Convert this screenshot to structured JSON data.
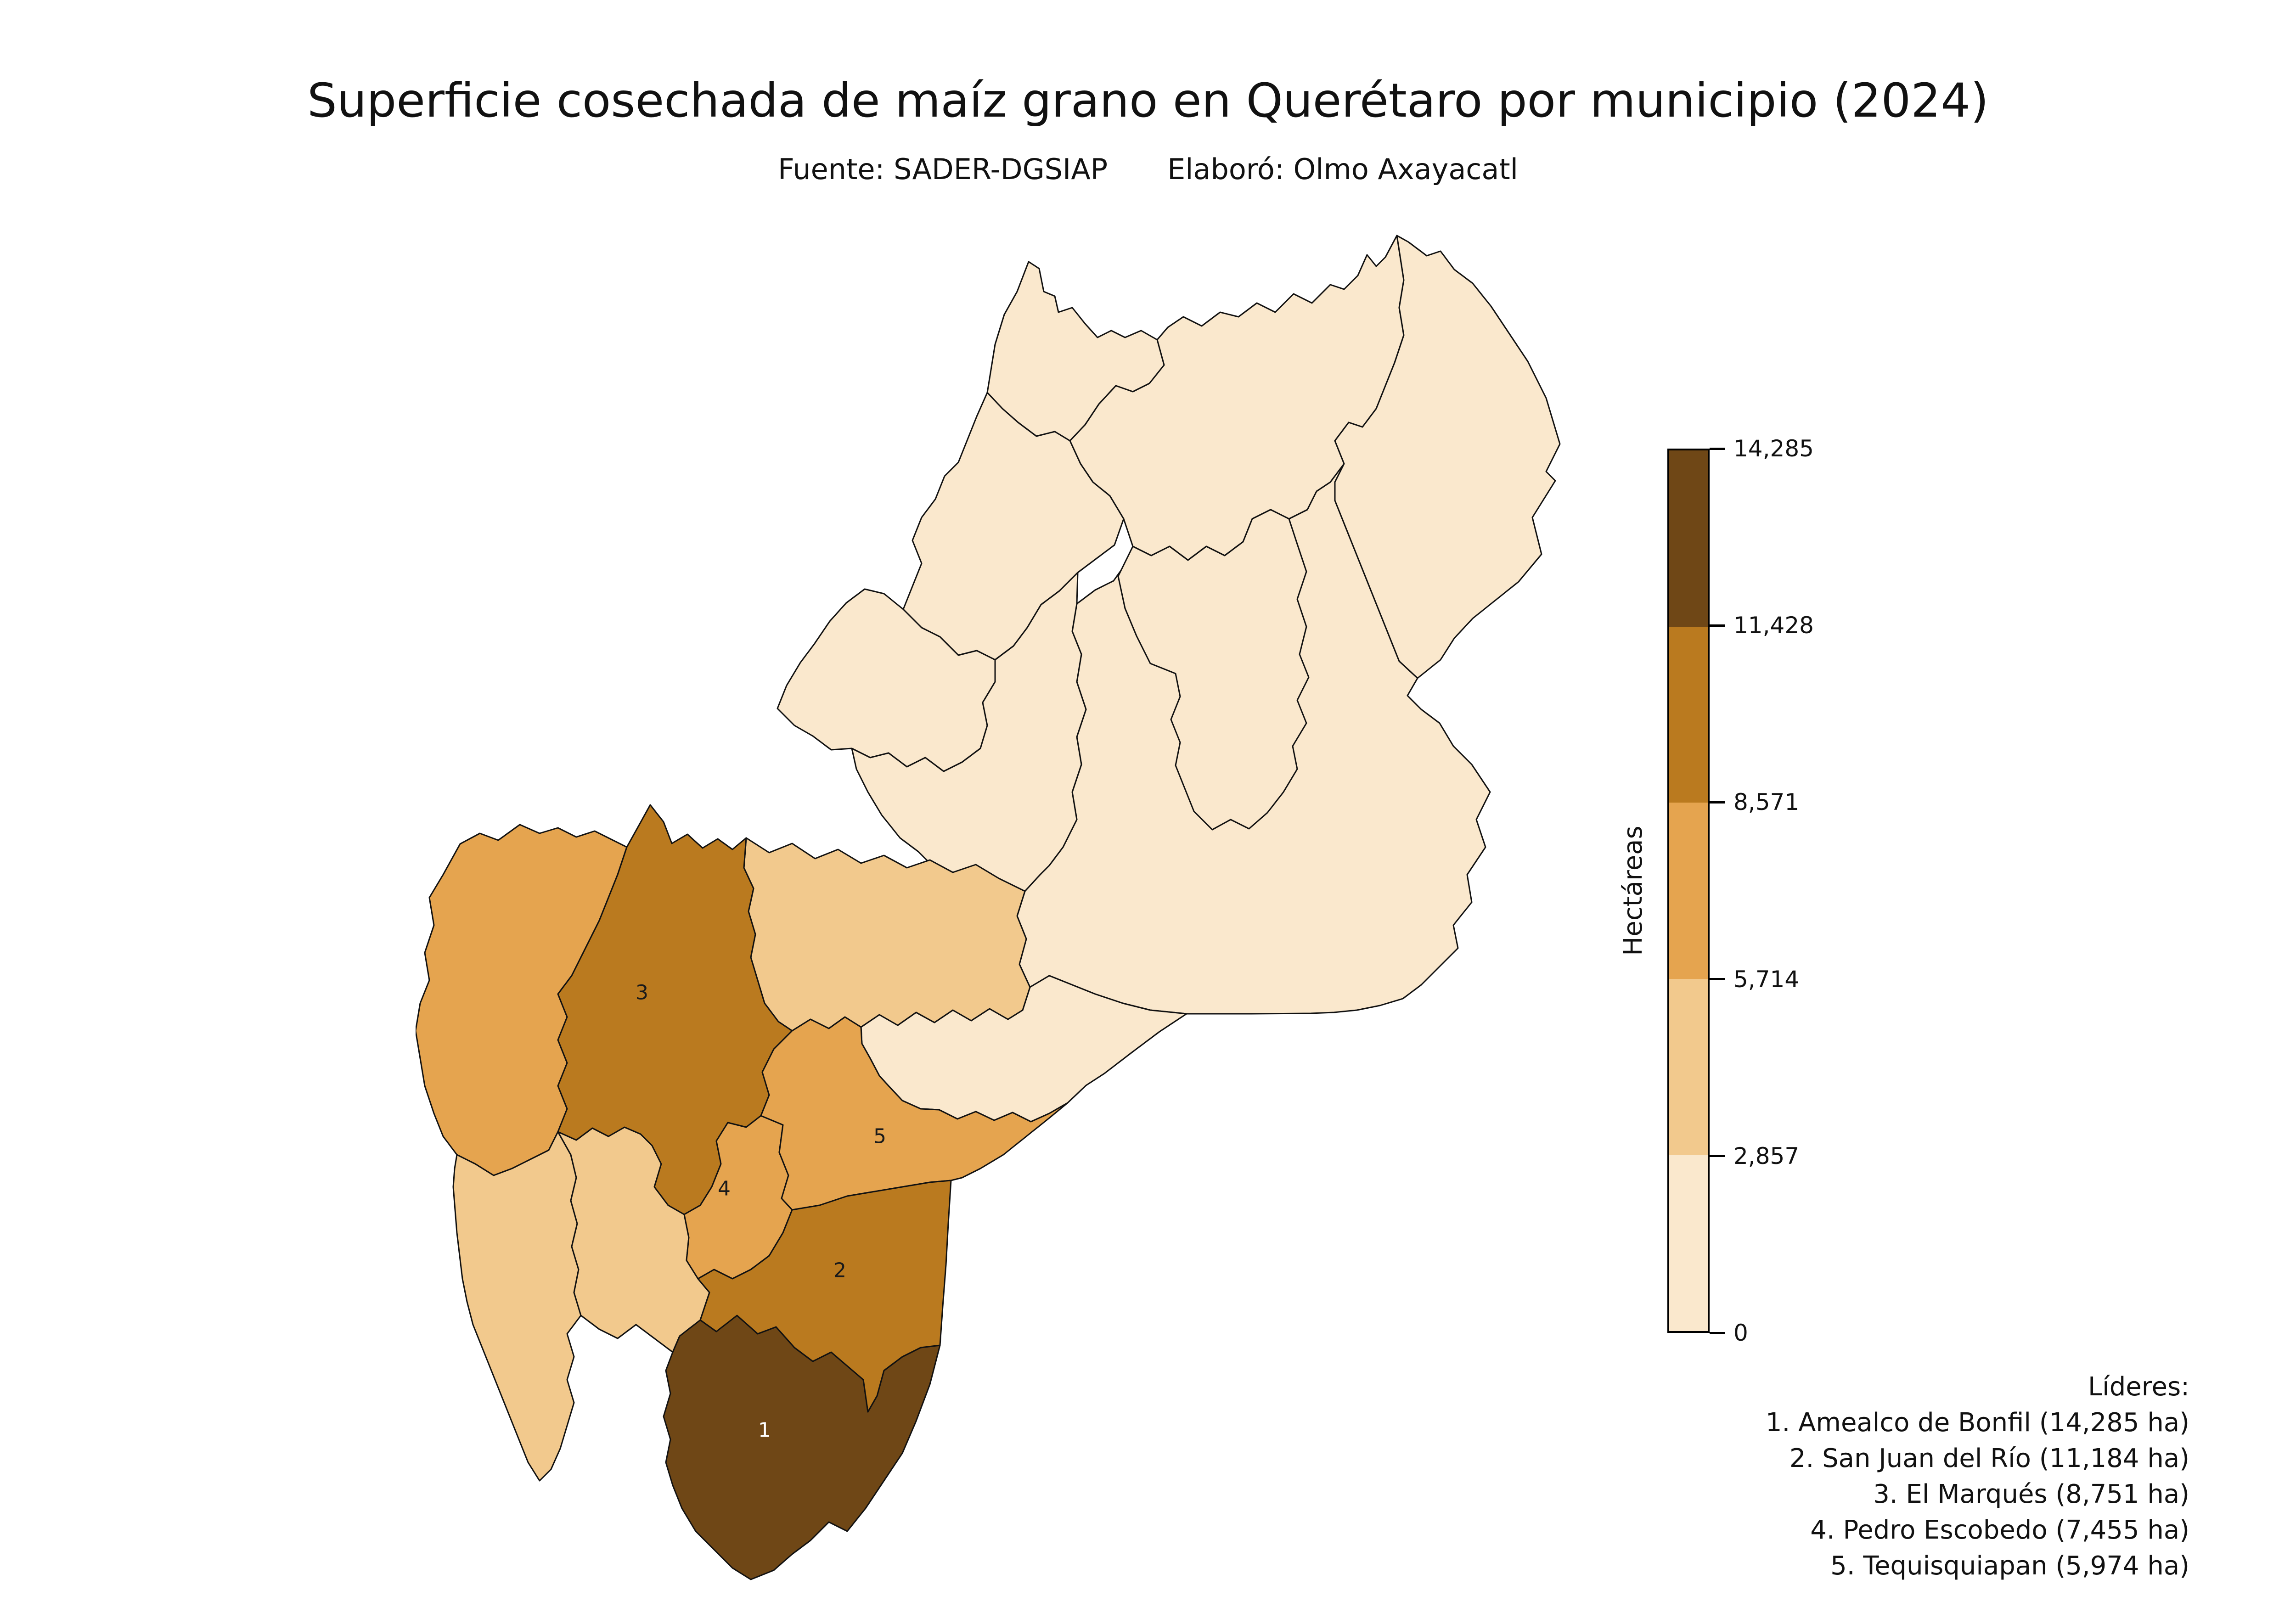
{
  "title": "Superficie cosechada de maíz grano en Querétaro por municipio (2024)",
  "subtitle": {
    "source": "Fuente: SADER-DGSIAP",
    "author": "Elaboró: Olmo Axayacatl"
  },
  "colorbar": {
    "label": "Hectáreas",
    "tick_labels_top_to_bottom": [
      "14,285",
      "11,428",
      "8,571",
      "5,714",
      "2,857",
      "0"
    ],
    "bin_colors_top_to_bottom": [
      "#6F4716",
      "#BA7A1F",
      "#E5A44F",
      "#F2C98D",
      "#FAE8CD"
    ]
  },
  "leaders": {
    "heading": "Líderes:",
    "items": [
      "1. Amealco de Bonfil (14,285 ha)",
      "2. San Juan del Río (11,184 ha)",
      "3. El Marqués (8,751 ha)",
      "4. Pedro Escobedo (7,455 ha)",
      "5. Tequisquiapan (5,974 ha)"
    ]
  },
  "map": {
    "border_color": "#111111",
    "regions": [
      {
        "id": "region-01",
        "color": "#FAE8CD",
        "label": ""
      },
      {
        "id": "region-02",
        "color": "#FAE8CD",
        "label": ""
      },
      {
        "id": "region-03",
        "color": "#FAE8CD",
        "label": ""
      },
      {
        "id": "region-04",
        "color": "#FAE8CD",
        "label": ""
      },
      {
        "id": "region-05",
        "color": "#FAE8CD",
        "label": ""
      },
      {
        "id": "region-06",
        "color": "#FAE8CD",
        "label": ""
      },
      {
        "id": "region-07",
        "color": "#FAE8CD",
        "label": ""
      },
      {
        "id": "region-08",
        "color": "#FAE8CD",
        "label": ""
      },
      {
        "id": "region-09",
        "color": "#FAE8CD",
        "label": ""
      },
      {
        "id": "region-10",
        "color": "#F2C98D",
        "label": ""
      },
      {
        "id": "region-11",
        "color": "#E5A44F",
        "label": ""
      },
      {
        "id": "region-12",
        "color": "#F2C98D",
        "label": ""
      },
      {
        "id": "region-13",
        "color": "#F2C98D",
        "label": ""
      },
      {
        "id": "region-14-amealco-de-bonfil",
        "color": "#6F4716",
        "label": "1",
        "label_color": "#ffffff",
        "leader_rank": 1
      },
      {
        "id": "region-15-el-marques",
        "color": "#BA7A1F",
        "label": "3",
        "label_color": "#1a1a1a",
        "leader_rank": 3
      },
      {
        "id": "region-16-pedro-escobedo",
        "color": "#E5A44F",
        "label": "4",
        "label_color": "#1a1a1a",
        "leader_rank": 4
      },
      {
        "id": "region-17-tequisquiapan",
        "color": "#E5A44F",
        "label": "5",
        "label_color": "#1a1a1a",
        "leader_rank": 5
      },
      {
        "id": "region-18-san-juan-del-rio",
        "color": "#BA7A1F",
        "label": "2",
        "label_color": "#1a1a1a",
        "leader_rank": 2
      }
    ]
  },
  "chart_data": {
    "type": "choropleth",
    "title": "Superficie cosechada de maíz grano en Querétaro por municipio (2024)",
    "source": "Fuente: SADER-DGSIAP",
    "author": "Elaboró: Olmo Axayacatl",
    "unit": "Hectáreas",
    "legend_position": "right",
    "colorscale": {
      "ticks": [
        0,
        2857,
        5714,
        8571,
        11428,
        14285
      ],
      "tick_labels": [
        "0",
        "2,857",
        "5,714",
        "8,571",
        "11,428",
        "14,285"
      ],
      "colors_low_to_high": [
        "#FAE8CD",
        "#F2C98D",
        "#E5A44F",
        "#BA7A1F",
        "#6F4716"
      ]
    },
    "labeled_regions": [
      {
        "rank": 1,
        "name": "Amealco de Bonfil",
        "hectares": 14285,
        "bin": "11,428–14,285"
      },
      {
        "rank": 2,
        "name": "San Juan del Río",
        "hectares": 11184,
        "bin": "8,571–11,428"
      },
      {
        "rank": 3,
        "name": "El Marqués",
        "hectares": 8751,
        "bin": "8,571–11,428"
      },
      {
        "rank": 4,
        "name": "Pedro Escobedo",
        "hectares": 7455,
        "bin": "5,714–8,571"
      },
      {
        "rank": 5,
        "name": "Tequisquiapan",
        "hectares": 5974,
        "bin": "5,714–8,571"
      }
    ],
    "unlabeled_region_bins": {
      "region-10": "2,857–5,714",
      "region-11": "5,714–8,571",
      "region-12": "2,857–5,714",
      "region-13": "2,857–5,714",
      "regions-01-to-09": "0–2,857"
    }
  }
}
